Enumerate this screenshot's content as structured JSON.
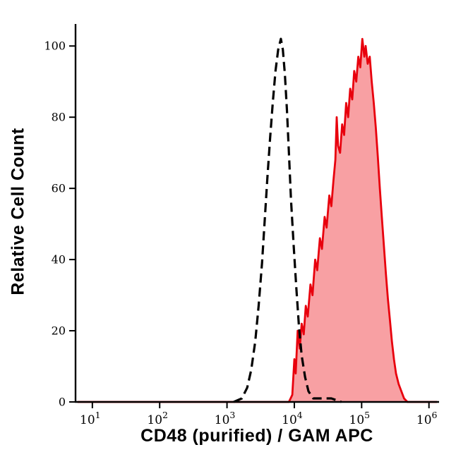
{
  "chart_data": {
    "type": "area",
    "title": "",
    "xlabel": "CD48 (purified) / GAM APC",
    "ylabel": "Relative Cell Count",
    "x_scale": "log10",
    "xlim_log": [
      0.75,
      6.15
    ],
    "ylim": [
      0,
      105
    ],
    "grid": false,
    "legend": "none",
    "axis_color": "#000000",
    "x_ticks": [
      {
        "log": 1,
        "base": "10",
        "exp": "1"
      },
      {
        "log": 2,
        "base": "10",
        "exp": "2"
      },
      {
        "log": 3,
        "base": "10",
        "exp": "3"
      },
      {
        "log": 4,
        "base": "10",
        "exp": "4"
      },
      {
        "log": 5,
        "base": "10",
        "exp": "5"
      },
      {
        "log": 6,
        "base": "10",
        "exp": "6"
      }
    ],
    "y_ticks": [
      0,
      20,
      40,
      60,
      80,
      100
    ],
    "series": [
      {
        "id": "red-filled-histogram",
        "style": "solid",
        "stroke": "#e8000d",
        "stroke_width": 2.8,
        "fill": "rgba(240,45,50,0.45)",
        "peak_log_x": 5.01,
        "peak_y": 102,
        "points": [
          [
            0.78,
            0
          ],
          [
            3.92,
            0
          ],
          [
            3.97,
            2
          ],
          [
            4.0,
            12
          ],
          [
            4.02,
            8
          ],
          [
            4.05,
            20
          ],
          [
            4.08,
            15
          ],
          [
            4.11,
            22
          ],
          [
            4.14,
            19
          ],
          [
            4.17,
            27
          ],
          [
            4.2,
            24
          ],
          [
            4.24,
            33
          ],
          [
            4.27,
            30
          ],
          [
            4.31,
            40
          ],
          [
            4.34,
            37
          ],
          [
            4.38,
            46
          ],
          [
            4.41,
            43
          ],
          [
            4.45,
            52
          ],
          [
            4.48,
            49
          ],
          [
            4.52,
            58
          ],
          [
            4.55,
            55
          ],
          [
            4.58,
            62
          ],
          [
            4.61,
            68
          ],
          [
            4.63,
            80
          ],
          [
            4.65,
            72
          ],
          [
            4.68,
            70
          ],
          [
            4.71,
            78
          ],
          [
            4.74,
            75
          ],
          [
            4.77,
            84
          ],
          [
            4.8,
            80
          ],
          [
            4.83,
            88
          ],
          [
            4.86,
            85
          ],
          [
            4.89,
            93
          ],
          [
            4.92,
            90
          ],
          [
            4.95,
            97
          ],
          [
            4.98,
            94
          ],
          [
            5.01,
            102
          ],
          [
            5.04,
            97
          ],
          [
            5.06,
            100
          ],
          [
            5.09,
            95
          ],
          [
            5.12,
            97
          ],
          [
            5.15,
            90
          ],
          [
            5.18,
            84
          ],
          [
            5.21,
            77
          ],
          [
            5.24,
            69
          ],
          [
            5.27,
            60
          ],
          [
            5.3,
            52
          ],
          [
            5.33,
            44
          ],
          [
            5.36,
            36
          ],
          [
            5.39,
            29
          ],
          [
            5.42,
            23
          ],
          [
            5.45,
            17
          ],
          [
            5.48,
            12
          ],
          [
            5.51,
            8
          ],
          [
            5.55,
            5
          ],
          [
            5.59,
            3
          ],
          [
            5.63,
            1
          ],
          [
            5.68,
            0
          ],
          [
            6.12,
            0
          ]
        ]
      },
      {
        "id": "black-dashed-histogram",
        "style": "dashed",
        "stroke": "#000000",
        "stroke_width": 3.2,
        "dash": "13 7",
        "fill": "none",
        "peak_log_x": 3.8,
        "peak_y": 102,
        "points": [
          [
            3.1,
            0
          ],
          [
            3.22,
            1
          ],
          [
            3.3,
            4
          ],
          [
            3.36,
            9
          ],
          [
            3.42,
            17
          ],
          [
            3.47,
            27
          ],
          [
            3.52,
            39
          ],
          [
            3.56,
            51
          ],
          [
            3.6,
            63
          ],
          [
            3.64,
            74
          ],
          [
            3.68,
            84
          ],
          [
            3.72,
            93
          ],
          [
            3.76,
            99
          ],
          [
            3.8,
            102
          ],
          [
            3.83,
            99
          ],
          [
            3.86,
            92
          ],
          [
            3.89,
            82
          ],
          [
            3.92,
            70
          ],
          [
            3.95,
            57
          ],
          [
            3.99,
            44
          ],
          [
            4.03,
            32
          ],
          [
            4.07,
            21
          ],
          [
            4.11,
            13
          ],
          [
            4.16,
            7
          ],
          [
            4.21,
            3
          ],
          [
            4.28,
            1
          ],
          [
            4.4,
            1
          ],
          [
            4.55,
            1
          ],
          [
            4.7,
            0
          ]
        ]
      }
    ]
  }
}
